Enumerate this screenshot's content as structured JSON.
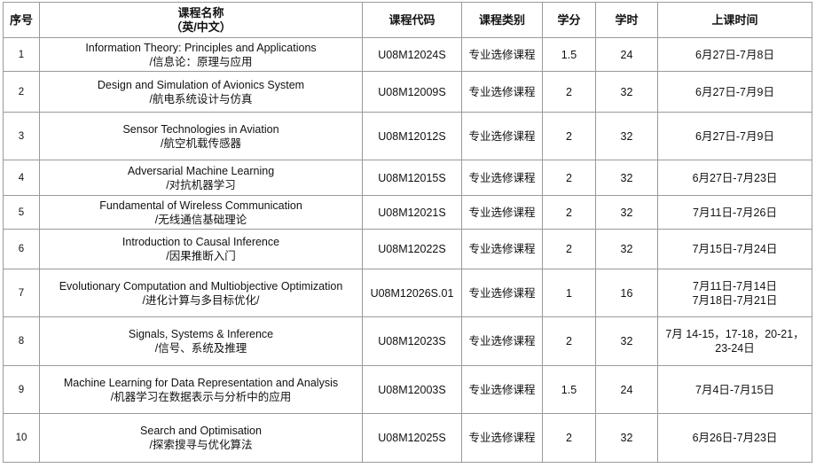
{
  "headers": {
    "seq": "序号",
    "name_line1": "课程名称",
    "name_line2": "（英/中文）",
    "code": "课程代码",
    "category": "课程类别",
    "credits": "学分",
    "hours": "学时",
    "schedule": "上课时间"
  },
  "rows": [
    {
      "seq": "1",
      "name_en": "Information Theory: Principles and Applications",
      "name_cn": "/信息论：原理与应用",
      "code": "U08M12024S",
      "category": "专业选修课程",
      "credits": "1.5",
      "hours": "24",
      "schedule": [
        "6月27日-7月8日"
      ]
    },
    {
      "seq": "2",
      "name_en": "Design and Simulation of Avionics System",
      "name_cn": "/航电系统设计与仿真",
      "code": "U08M12009S",
      "category": "专业选修课程",
      "credits": "2",
      "hours": "32",
      "schedule": [
        "6月27日-7月9日"
      ]
    },
    {
      "seq": "3",
      "name_en": "Sensor Technologies in Aviation",
      "name_cn": "/航空机载传感器",
      "code": "U08M12012S",
      "category": "专业选修课程",
      "credits": "2",
      "hours": "32",
      "schedule": [
        "6月27日-7月9日"
      ]
    },
    {
      "seq": "4",
      "name_en": "Adversarial Machine Learning",
      "name_cn": "/对抗机器学习",
      "code": "U08M12015S",
      "category": "专业选修课程",
      "credits": "2",
      "hours": "32",
      "schedule": [
        "6月27日-7月23日"
      ]
    },
    {
      "seq": "5",
      "name_en": "Fundamental of Wireless Communication",
      "name_cn": "/无线通信基础理论",
      "code": "U08M12021S",
      "category": "专业选修课程",
      "credits": "2",
      "hours": "32",
      "schedule": [
        "7月11日-7月26日"
      ]
    },
    {
      "seq": "6",
      "name_en": "Introduction to Causal Inference",
      "name_cn": "/因果推断入门",
      "code": "U08M12022S",
      "category": "专业选修课程",
      "credits": "2",
      "hours": "32",
      "schedule": [
        "7月15日-7月24日"
      ]
    },
    {
      "seq": "7",
      "name_en": "Evolutionary Computation and Multiobjective Optimization",
      "name_cn": "/进化计算与多目标优化/",
      "code": "U08M12026S.01",
      "category": "专业选修课程",
      "credits": "1",
      "hours": "16",
      "schedule": [
        "7月11日-7月14日",
        "7月18日-7月21日"
      ]
    },
    {
      "seq": "8",
      "name_en": "Signals, Systems & Inference",
      "name_cn": "/信号、系统及推理",
      "code": "U08M12023S",
      "category": "专业选修课程",
      "credits": "2",
      "hours": "32",
      "schedule": [
        "7月 14-15，17-18，20-21，",
        "23-24日"
      ]
    },
    {
      "seq": "9",
      "name_en": "Machine Learning for Data Representation and Analysis",
      "name_cn": "/机器学习在数据表示与分析中的应用",
      "code": "U08M12003S",
      "category": "专业选修课程",
      "credits": "1.5",
      "hours": "24",
      "schedule": [
        "7月4日-7月15日"
      ]
    },
    {
      "seq": "10",
      "name_en": "Search and Optimisation",
      "name_cn": "/探索搜寻与优化算法",
      "code": "U08M12025S",
      "category": "专业选修课程",
      "credits": "2",
      "hours": "32",
      "schedule": [
        "6月26日-7月23日"
      ]
    }
  ]
}
